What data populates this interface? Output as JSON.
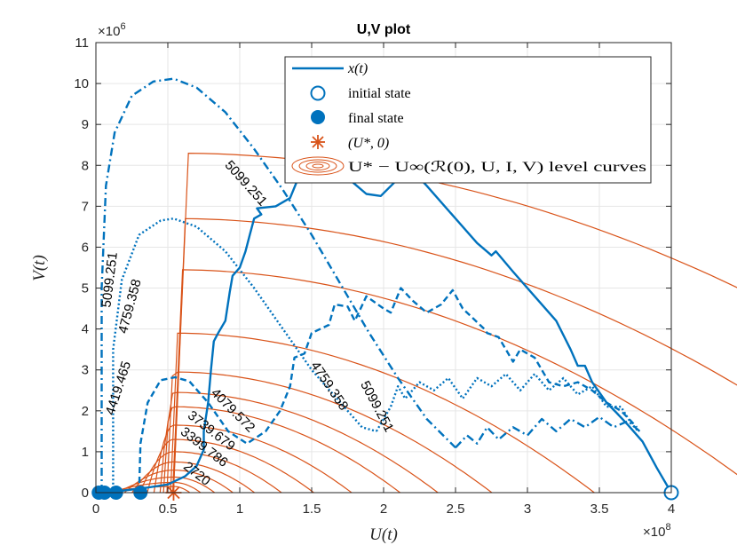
{
  "chart_data": {
    "type": "line",
    "title": "U,V plot",
    "xlabel": "U(t)",
    "ylabel": "V(t)",
    "x_exponent_base": "×10",
    "x_exponent_power": "8",
    "y_exponent_base": "×10",
    "y_exponent_power": "6",
    "xlim": [
      0,
      4.0
    ],
    "ylim": [
      0,
      11
    ],
    "x_ticks": [
      0,
      0.5,
      1,
      1.5,
      2,
      2.5,
      3,
      3.5,
      4
    ],
    "x_tick_labels": [
      "0",
      "0.5",
      "1",
      "1.5",
      "2",
      "2.5",
      "3",
      "3.5",
      "4"
    ],
    "y_ticks": [
      0,
      1,
      2,
      3,
      4,
      5,
      6,
      7,
      8,
      9,
      10,
      11
    ],
    "y_tick_labels": [
      "0",
      "1",
      "2",
      "3",
      "4",
      "5",
      "6",
      "7",
      "8",
      "9",
      "10",
      "11"
    ],
    "grid": true,
    "colors": {
      "trajectory": "#0072BD",
      "contour": "#D95319",
      "axis": "#262626",
      "grid": "#e6e6e6"
    },
    "legend": {
      "position": "top-right",
      "entries": [
        {
          "label": "x(t)",
          "marker": "line"
        },
        {
          "label": "initial state",
          "marker": "open-circle"
        },
        {
          "label": "final state",
          "marker": "filled-circle"
        },
        {
          "label": "(U*, 0)",
          "marker": "asterisk"
        },
        {
          "label": "U* − U∞(ℛ(0), U, I, V) level curves",
          "marker": "contour"
        }
      ]
    },
    "equilibrium_point": {
      "x": 0.54,
      "y": 0
    },
    "contours": {
      "center_x": 0.54,
      "peak_heights": [
        0.15,
        0.25,
        0.38,
        0.55,
        0.75,
        1.0,
        1.3,
        1.65,
        2.1,
        2.45,
        2.95,
        3.9,
        5.45,
        6.7,
        8.3
      ],
      "levels": [
        "2720",
        "3399.786",
        "3739.679",
        "4079.572",
        "4419.465",
        "4759.358",
        "5099.251"
      ],
      "labels": [
        {
          "text": "2720",
          "x": 0.7,
          "y": 0.45,
          "angle": 38
        },
        {
          "text": "3399.786",
          "x": 0.75,
          "y": 1.1,
          "angle": 38
        },
        {
          "text": "3739.679",
          "x": 0.8,
          "y": 1.5,
          "angle": 38
        },
        {
          "text": "4079.572",
          "x": 0.95,
          "y": 2.0,
          "angle": 45
        },
        {
          "text": "4419.465",
          "x": 0.16,
          "y": 2.55,
          "angle": -72
        },
        {
          "text": "4759.358",
          "x": 0.24,
          "y": 4.55,
          "angle": -75
        },
        {
          "text": "5099.251",
          "x": 0.1,
          "y": 5.2,
          "angle": -83
        },
        {
          "text": "5099.251",
          "x": 1.04,
          "y": 7.55,
          "angle": 48
        },
        {
          "text": "4759.358",
          "x": 1.62,
          "y": 2.6,
          "angle": 56
        },
        {
          "text": "5099.251",
          "x": 1.95,
          "y": 2.1,
          "angle": 62
        }
      ]
    },
    "series": [
      {
        "name": "trajectory-dashdot",
        "style": "dashdot",
        "points": [
          [
            0.04,
            0
          ],
          [
            0.04,
            5
          ],
          [
            0.07,
            7.5
          ],
          [
            0.13,
            8.8
          ],
          [
            0.25,
            9.7
          ],
          [
            0.4,
            10.05
          ],
          [
            0.54,
            10.12
          ],
          [
            0.7,
            9.9
          ],
          [
            0.9,
            9.3
          ],
          [
            1.1,
            8.4
          ],
          [
            1.3,
            7.4
          ],
          [
            1.5,
            6.3
          ],
          [
            1.7,
            5.1
          ],
          [
            1.9,
            3.9
          ],
          [
            2.1,
            2.8
          ],
          [
            2.3,
            1.8
          ],
          [
            2.5,
            1.1
          ]
        ]
      },
      {
        "name": "trajectory-dotted",
        "style": "dotted",
        "points": [
          [
            0.12,
            0
          ],
          [
            0.12,
            3.5
          ],
          [
            0.18,
            5.2
          ],
          [
            0.3,
            6.3
          ],
          [
            0.45,
            6.65
          ],
          [
            0.54,
            6.7
          ],
          [
            0.7,
            6.5
          ],
          [
            0.9,
            5.9
          ],
          [
            1.1,
            5.0
          ],
          [
            1.3,
            4.0
          ],
          [
            1.5,
            3.0
          ],
          [
            1.7,
            2.2
          ],
          [
            1.85,
            1.6
          ],
          [
            1.95,
            1.5
          ]
        ]
      },
      {
        "name": "trajectory-dashed",
        "style": "dashed",
        "points": [
          [
            0.3,
            0
          ],
          [
            0.31,
            1.2
          ],
          [
            0.36,
            2.2
          ],
          [
            0.45,
            2.75
          ],
          [
            0.55,
            2.82
          ],
          [
            0.65,
            2.72
          ],
          [
            0.78,
            2.2
          ],
          [
            0.92,
            1.5
          ],
          [
            1.05,
            1.2
          ],
          [
            1.18,
            1.5
          ],
          [
            1.28,
            2.0
          ],
          [
            1.35,
            2.6
          ],
          [
            1.38,
            3.3
          ],
          [
            1.45,
            3.4
          ],
          [
            1.5,
            3.9
          ],
          [
            1.62,
            4.1
          ],
          [
            1.66,
            4.6
          ],
          [
            1.75,
            4.55
          ],
          [
            1.8,
            4.2
          ],
          [
            1.88,
            4.8
          ],
          [
            2.0,
            4.5
          ],
          [
            2.05,
            4.4
          ],
          [
            2.12,
            5.0
          ],
          [
            2.2,
            4.7
          ],
          [
            2.3,
            4.4
          ],
          [
            2.4,
            4.6
          ],
          [
            2.48,
            4.95
          ],
          [
            2.55,
            4.5
          ],
          [
            2.7,
            4.0
          ],
          [
            2.72,
            3.9
          ],
          [
            2.8,
            3.8
          ],
          [
            2.9,
            3.2
          ],
          [
            2.95,
            3.5
          ],
          [
            3.05,
            3.3
          ],
          [
            3.15,
            2.7
          ],
          [
            3.25,
            2.6
          ],
          [
            3.35,
            2.7
          ],
          [
            3.45,
            2.5
          ],
          [
            3.55,
            2.2
          ],
          [
            3.65,
            2.0
          ],
          [
            3.72,
            1.75
          ],
          [
            3.76,
            1.6
          ]
        ]
      },
      {
        "name": "trajectory-dotted-tail",
        "style": "dotted",
        "points": [
          [
            1.95,
            1.5
          ],
          [
            2.05,
            2.1
          ],
          [
            2.1,
            2.6
          ],
          [
            2.15,
            2.3
          ],
          [
            2.25,
            2.7
          ],
          [
            2.35,
            2.5
          ],
          [
            2.45,
            2.8
          ],
          [
            2.55,
            2.3
          ],
          [
            2.65,
            2.8
          ],
          [
            2.75,
            2.6
          ],
          [
            2.85,
            2.9
          ],
          [
            2.95,
            2.5
          ],
          [
            3.05,
            2.9
          ],
          [
            3.15,
            2.5
          ],
          [
            3.25,
            2.8
          ],
          [
            3.35,
            2.4
          ],
          [
            3.45,
            2.6
          ],
          [
            3.55,
            2.1
          ],
          [
            3.65,
            2.1
          ],
          [
            3.72,
            1.7
          ],
          [
            3.77,
            1.5
          ]
        ]
      },
      {
        "name": "trajectory-dashdot-tail",
        "style": "dashdot",
        "points": [
          [
            2.5,
            1.1
          ],
          [
            2.58,
            1.4
          ],
          [
            2.65,
            1.2
          ],
          [
            2.72,
            1.6
          ],
          [
            2.8,
            1.3
          ],
          [
            2.9,
            1.6
          ],
          [
            3.0,
            1.4
          ],
          [
            3.1,
            1.8
          ],
          [
            3.2,
            1.5
          ],
          [
            3.3,
            1.8
          ],
          [
            3.4,
            1.6
          ],
          [
            3.5,
            1.85
          ],
          [
            3.6,
            1.6
          ],
          [
            3.7,
            1.75
          ],
          [
            3.78,
            1.5
          ]
        ]
      },
      {
        "name": "trajectory-solid",
        "style": "solid",
        "points": [
          [
            0.02,
            0
          ],
          [
            0.12,
            0.02
          ],
          [
            0.35,
            0.12
          ],
          [
            0.5,
            0.2
          ],
          [
            0.62,
            0.4
          ],
          [
            0.7,
            0.65
          ],
          [
            0.75,
            1.05
          ],
          [
            0.75,
            1.5
          ],
          [
            0.78,
            2.2
          ],
          [
            0.8,
            3.0
          ],
          [
            0.82,
            3.7
          ],
          [
            0.85,
            3.9
          ],
          [
            0.9,
            4.2
          ],
          [
            0.93,
            4.9
          ],
          [
            0.95,
            5.3
          ],
          [
            1.0,
            5.5
          ],
          [
            1.04,
            5.9
          ],
          [
            1.07,
            6.3
          ],
          [
            1.1,
            6.7
          ],
          [
            1.15,
            6.8
          ],
          [
            1.12,
            6.95
          ],
          [
            1.25,
            7.0
          ],
          [
            1.35,
            7.2
          ],
          [
            1.42,
            7.8
          ],
          [
            1.55,
            8.1
          ],
          [
            1.68,
            8.1
          ],
          [
            1.78,
            7.6
          ],
          [
            1.88,
            7.3
          ],
          [
            1.98,
            7.25
          ],
          [
            2.08,
            7.6
          ],
          [
            2.14,
            8.1
          ],
          [
            2.3,
            7.5
          ],
          [
            2.5,
            6.7
          ],
          [
            2.65,
            6.1
          ],
          [
            2.75,
            5.8
          ],
          [
            2.78,
            5.9
          ],
          [
            2.9,
            5.4
          ],
          [
            3.05,
            4.8
          ],
          [
            3.2,
            4.2
          ],
          [
            3.3,
            3.5
          ],
          [
            3.35,
            3.1
          ],
          [
            3.4,
            3.1
          ],
          [
            3.45,
            2.7
          ],
          [
            3.55,
            2.2
          ],
          [
            3.62,
            1.95
          ],
          [
            3.7,
            1.65
          ],
          [
            3.8,
            1.25
          ],
          [
            3.9,
            0.6
          ],
          [
            4.0,
            0
          ]
        ]
      }
    ],
    "initial_states": [
      [
        4.0,
        0
      ]
    ],
    "final_states": [
      [
        0.02,
        0
      ],
      [
        0.06,
        0
      ],
      [
        0.14,
        0
      ],
      [
        0.31,
        0
      ]
    ]
  }
}
